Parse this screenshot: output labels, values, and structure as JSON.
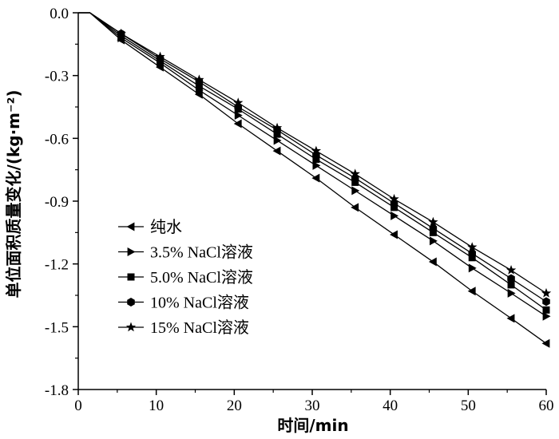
{
  "chart_data": {
    "type": "line",
    "title": "",
    "xlabel": "时间/min",
    "ylabel": "单位面积质量变化/(kg·m⁻²)",
    "xlim": [
      0,
      60
    ],
    "ylim": [
      -1.8,
      0.0
    ],
    "xticks": [
      0,
      10,
      20,
      30,
      40,
      50,
      60
    ],
    "xtick_labels": [
      "0",
      "10",
      "20",
      "30",
      "40",
      "50",
      "60"
    ],
    "yticks": [
      0.0,
      -0.3,
      -0.6,
      -0.9,
      -1.2,
      -1.5,
      -1.8
    ],
    "ytick_labels": [
      "0.0",
      "-0.3",
      "-0.6",
      "-0.9",
      "-1.2",
      "-1.5",
      "-1.8"
    ],
    "grid": false,
    "legend_position": "bottom-left",
    "x": [
      0,
      0.5,
      1,
      1.5,
      5.5,
      10.5,
      15.5,
      20.5,
      25.5,
      30.5,
      35.5,
      40.5,
      45.5,
      50.5,
      55.5,
      60
    ],
    "series": [
      {
        "name": "纯水",
        "marker": "triangle-left",
        "values": [
          0,
          0,
          0,
          0,
          -0.13,
          -0.26,
          -0.39,
          -0.53,
          -0.66,
          -0.79,
          -0.93,
          -1.06,
          -1.19,
          -1.33,
          -1.46,
          -1.58
        ]
      },
      {
        "name": "3.5% NaCl溶液",
        "marker": "triangle-right",
        "values": [
          0,
          0,
          0,
          0,
          -0.12,
          -0.24,
          -0.37,
          -0.49,
          -0.61,
          -0.73,
          -0.85,
          -0.97,
          -1.09,
          -1.22,
          -1.34,
          -1.45
        ]
      },
      {
        "name": "5.0% NaCl溶液",
        "marker": "square",
        "values": [
          0,
          0,
          0,
          0,
          -0.11,
          -0.23,
          -0.35,
          -0.46,
          -0.58,
          -0.7,
          -0.81,
          -0.93,
          -1.05,
          -1.17,
          -1.3,
          -1.42
        ]
      },
      {
        "name": "10% NaCl溶液",
        "marker": "hexagon",
        "values": [
          0,
          0,
          0,
          0,
          -0.1,
          -0.22,
          -0.33,
          -0.45,
          -0.56,
          -0.68,
          -0.79,
          -0.91,
          -1.03,
          -1.15,
          -1.27,
          -1.38
        ]
      },
      {
        "name": "15% NaCl溶液",
        "marker": "star",
        "values": [
          0,
          0,
          0,
          0,
          -0.1,
          -0.21,
          -0.32,
          -0.43,
          -0.55,
          -0.66,
          -0.77,
          -0.89,
          -1.0,
          -1.12,
          -1.23,
          -1.34
        ]
      }
    ]
  }
}
